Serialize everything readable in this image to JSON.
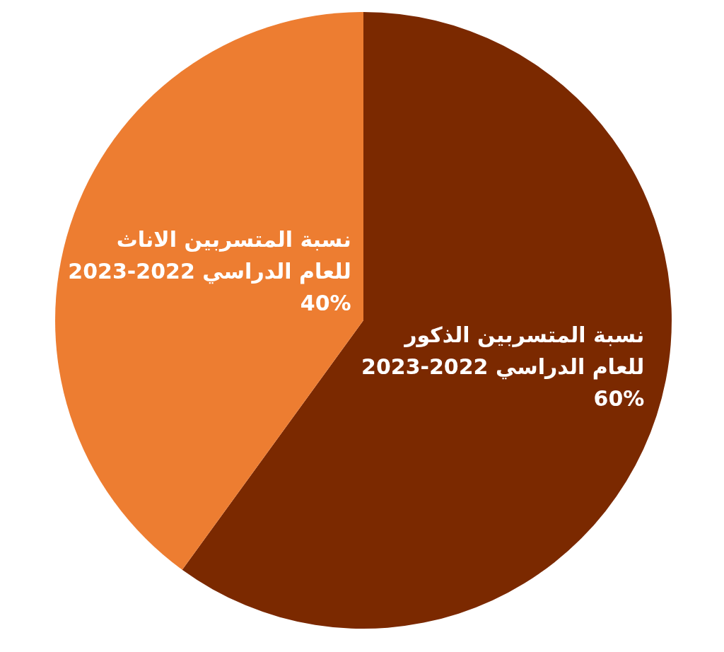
{
  "chart_data": {
    "type": "pie",
    "categories": [
      "نسبة المتسربين الذكور\nللعام الدراسي 2022-2023",
      "نسبة المتسربين الاناث\nللعام الدراسي 2022-2023"
    ],
    "values": [
      60,
      40
    ],
    "value_labels": [
      "60%",
      "40%"
    ],
    "colors": [
      "#7b2900",
      "#ed7d31"
    ]
  }
}
